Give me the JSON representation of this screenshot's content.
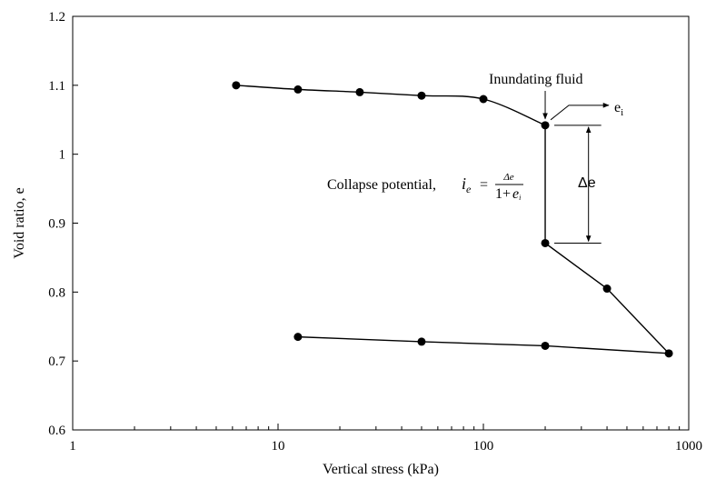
{
  "chart_data": {
    "type": "scatter",
    "xlabel": "Vertical stress (kPa)",
    "ylabel": "Void ratio, e",
    "x_scale": "log",
    "xlim": [
      1,
      1000
    ],
    "ylim": [
      0.6,
      1.2
    ],
    "x_ticks": [
      1,
      10,
      100,
      1000
    ],
    "x_tick_labels": [
      "1",
      "10",
      "100",
      "1000"
    ],
    "y_ticks": [
      0.6,
      0.7,
      0.8,
      0.9,
      1.0,
      1.1,
      1.2
    ],
    "y_tick_labels": [
      "0.6",
      "0.7",
      "0.8",
      "0.9",
      "1",
      "1.1",
      "1.2"
    ],
    "grid": false,
    "series": [
      {
        "points": [
          {
            "x": 6.25,
            "y": 1.1
          },
          {
            "x": 12.5,
            "y": 1.094
          },
          {
            "x": 25,
            "y": 1.09
          },
          {
            "x": 50,
            "y": 1.085
          },
          {
            "x": 100,
            "y": 1.08
          },
          {
            "x": 200,
            "y": 1.042
          },
          {
            "x": 200,
            "y": 0.871
          },
          {
            "x": 400,
            "y": 0.805
          },
          {
            "x": 800,
            "y": 0.711
          },
          {
            "x": 200,
            "y": 0.722
          },
          {
            "x": 50,
            "y": 0.728
          },
          {
            "x": 12.5,
            "y": 0.735
          }
        ]
      }
    ],
    "annotations": {
      "inundating": "Inundating fluid",
      "ei_base": "e",
      "ei_sub": "i",
      "collapse_prefix": "Collapse potential,",
      "collapse_symbol": "i",
      "collapse_symbol_sub": "e",
      "equals": "=",
      "numerator": "Δe",
      "denominator_prefix": "1+",
      "denominator_var": "e",
      "denominator_sub": "i",
      "delta_e": "Δe"
    }
  }
}
